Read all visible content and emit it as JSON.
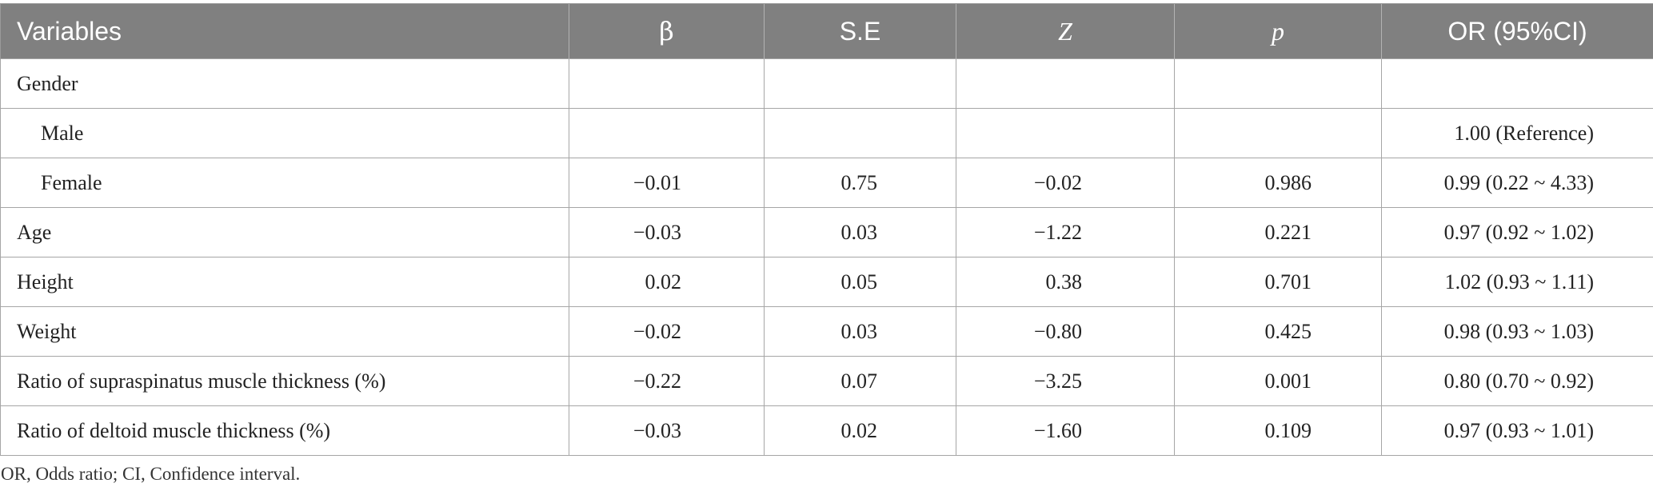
{
  "table": {
    "headers": [
      "Variables",
      "β",
      "S.E",
      "Z",
      "p",
      "OR (95%CI)"
    ],
    "rows": [
      {
        "label": "Gender",
        "indent": false,
        "beta": "",
        "se": "",
        "z": "",
        "p": "",
        "or": ""
      },
      {
        "label": "Male",
        "indent": true,
        "beta": "",
        "se": "",
        "z": "",
        "p": "",
        "or": "1.00 (Reference)"
      },
      {
        "label": "Female",
        "indent": true,
        "beta": "−0.01",
        "se": "0.75",
        "z": "−0.02",
        "p": "0.986",
        "or": "0.99 (0.22 ~ 4.33)"
      },
      {
        "label": "Age",
        "indent": false,
        "beta": "−0.03",
        "se": "0.03",
        "z": "−1.22",
        "p": "0.221",
        "or": "0.97 (0.92 ~ 1.02)"
      },
      {
        "label": "Height",
        "indent": false,
        "beta": "0.02",
        "se": "0.05",
        "z": "0.38",
        "p": "0.701",
        "or": "1.02 (0.93 ~ 1.11)"
      },
      {
        "label": "Weight",
        "indent": false,
        "beta": "−0.02",
        "se": "0.03",
        "z": "−0.80",
        "p": "0.425",
        "or": "0.98 (0.93 ~ 1.03)"
      },
      {
        "label": "Ratio of supraspinatus muscle thickness (%)",
        "indent": false,
        "beta": "−0.22",
        "se": "0.07",
        "z": "−3.25",
        "p": "0.001",
        "or": "0.80 (0.70 ~ 0.92)"
      },
      {
        "label": "Ratio of deltoid muscle thickness (%)",
        "indent": false,
        "beta": "−0.03",
        "se": "0.02",
        "z": "−1.60",
        "p": "0.109",
        "or": "0.97 (0.93 ~ 1.01)"
      }
    ]
  },
  "footnote": "OR, Odds ratio; CI, Confidence interval.",
  "colors": {
    "header_bg": "#808080",
    "header_text": "#ffffff",
    "grid": "#a6a6a6"
  }
}
